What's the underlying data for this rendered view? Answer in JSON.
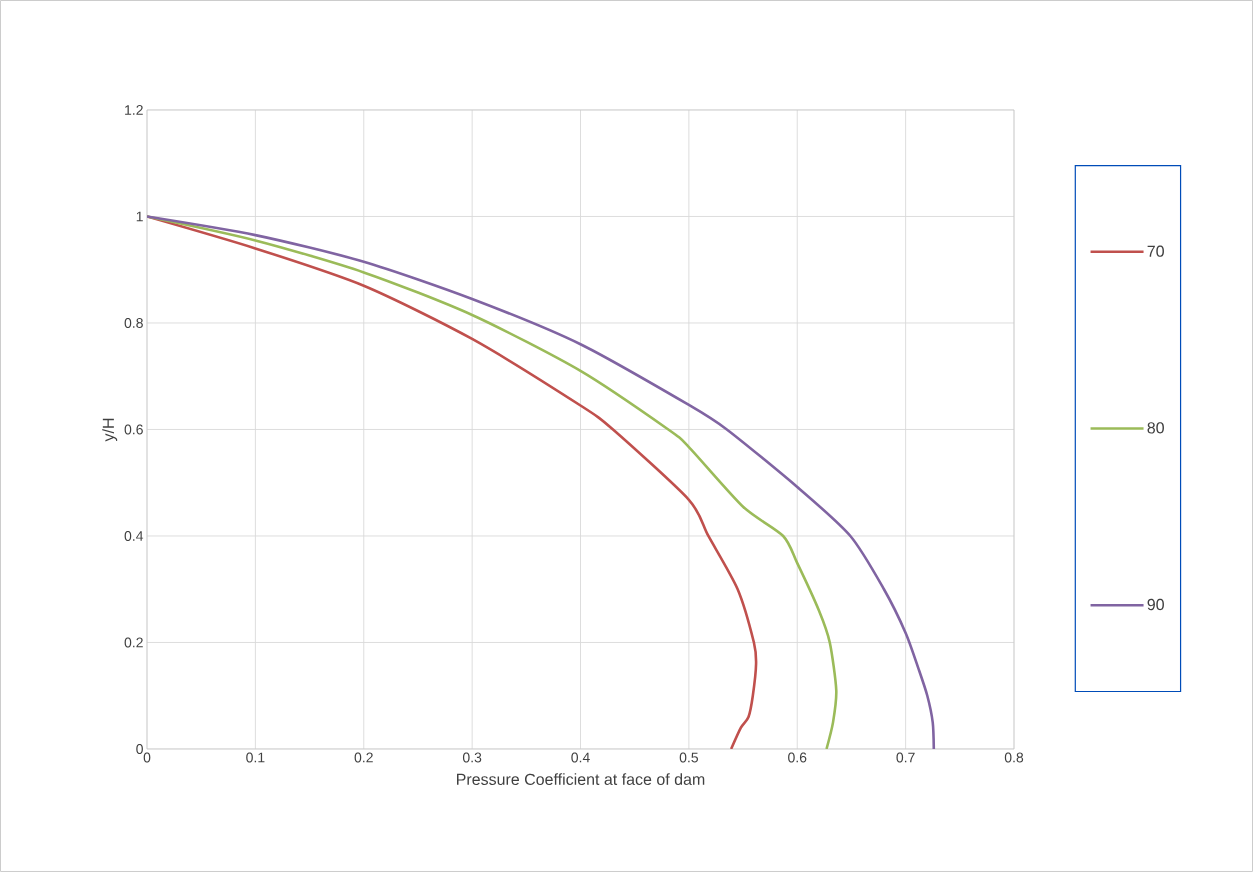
{
  "chart_data": {
    "type": "line",
    "xlabel": "Pressure Coefficient at face of dam",
    "ylabel": "y/H",
    "xlim": [
      0,
      0.8
    ],
    "ylim": [
      0,
      1.2
    ],
    "xticks": [
      0,
      0.1,
      0.2,
      0.3,
      0.4,
      0.5,
      0.6,
      0.7,
      0.8
    ],
    "yticks": [
      0,
      0.2,
      0.4,
      0.6,
      0.8,
      1,
      1.2
    ],
    "grid": true,
    "legend": "right",
    "marker": "none",
    "line_style": "solid",
    "series": [
      {
        "name": "70",
        "color": "#c0504d",
        "x": [
          0,
          0.1,
          0.2,
          0.3,
          0.4,
          0.43,
          0.5,
          0.518,
          0.545,
          0.56,
          0.562,
          0.559,
          0.555,
          0.548,
          0.539
        ],
        "values": [
          1,
          0.94,
          0.87,
          0.77,
          0.645,
          0.6,
          0.468,
          0.4,
          0.3,
          0.2,
          0.16,
          0.1,
          0.06,
          0.04,
          0
        ]
      },
      {
        "name": "80",
        "color": "#9bbb59",
        "x": [
          0,
          0.1,
          0.2,
          0.3,
          0.4,
          0.481,
          0.5,
          0.55,
          0.587,
          0.6,
          0.62,
          0.63,
          0.636,
          0.633,
          0.627
        ],
        "values": [
          1,
          0.955,
          0.895,
          0.815,
          0.71,
          0.6,
          0.567,
          0.455,
          0.4,
          0.349,
          0.26,
          0.2,
          0.11,
          0.05,
          0
        ]
      },
      {
        "name": "90",
        "color": "#8064a2",
        "x": [
          0,
          0.1,
          0.2,
          0.3,
          0.4,
          0.5,
          0.535,
          0.6,
          0.649,
          0.68,
          0.7,
          0.712,
          0.72,
          0.725,
          0.726
        ],
        "values": [
          1,
          0.965,
          0.915,
          0.845,
          0.76,
          0.646,
          0.6,
          0.492,
          0.4,
          0.3,
          0.218,
          0.15,
          0.1,
          0.05,
          0
        ]
      }
    ]
  }
}
